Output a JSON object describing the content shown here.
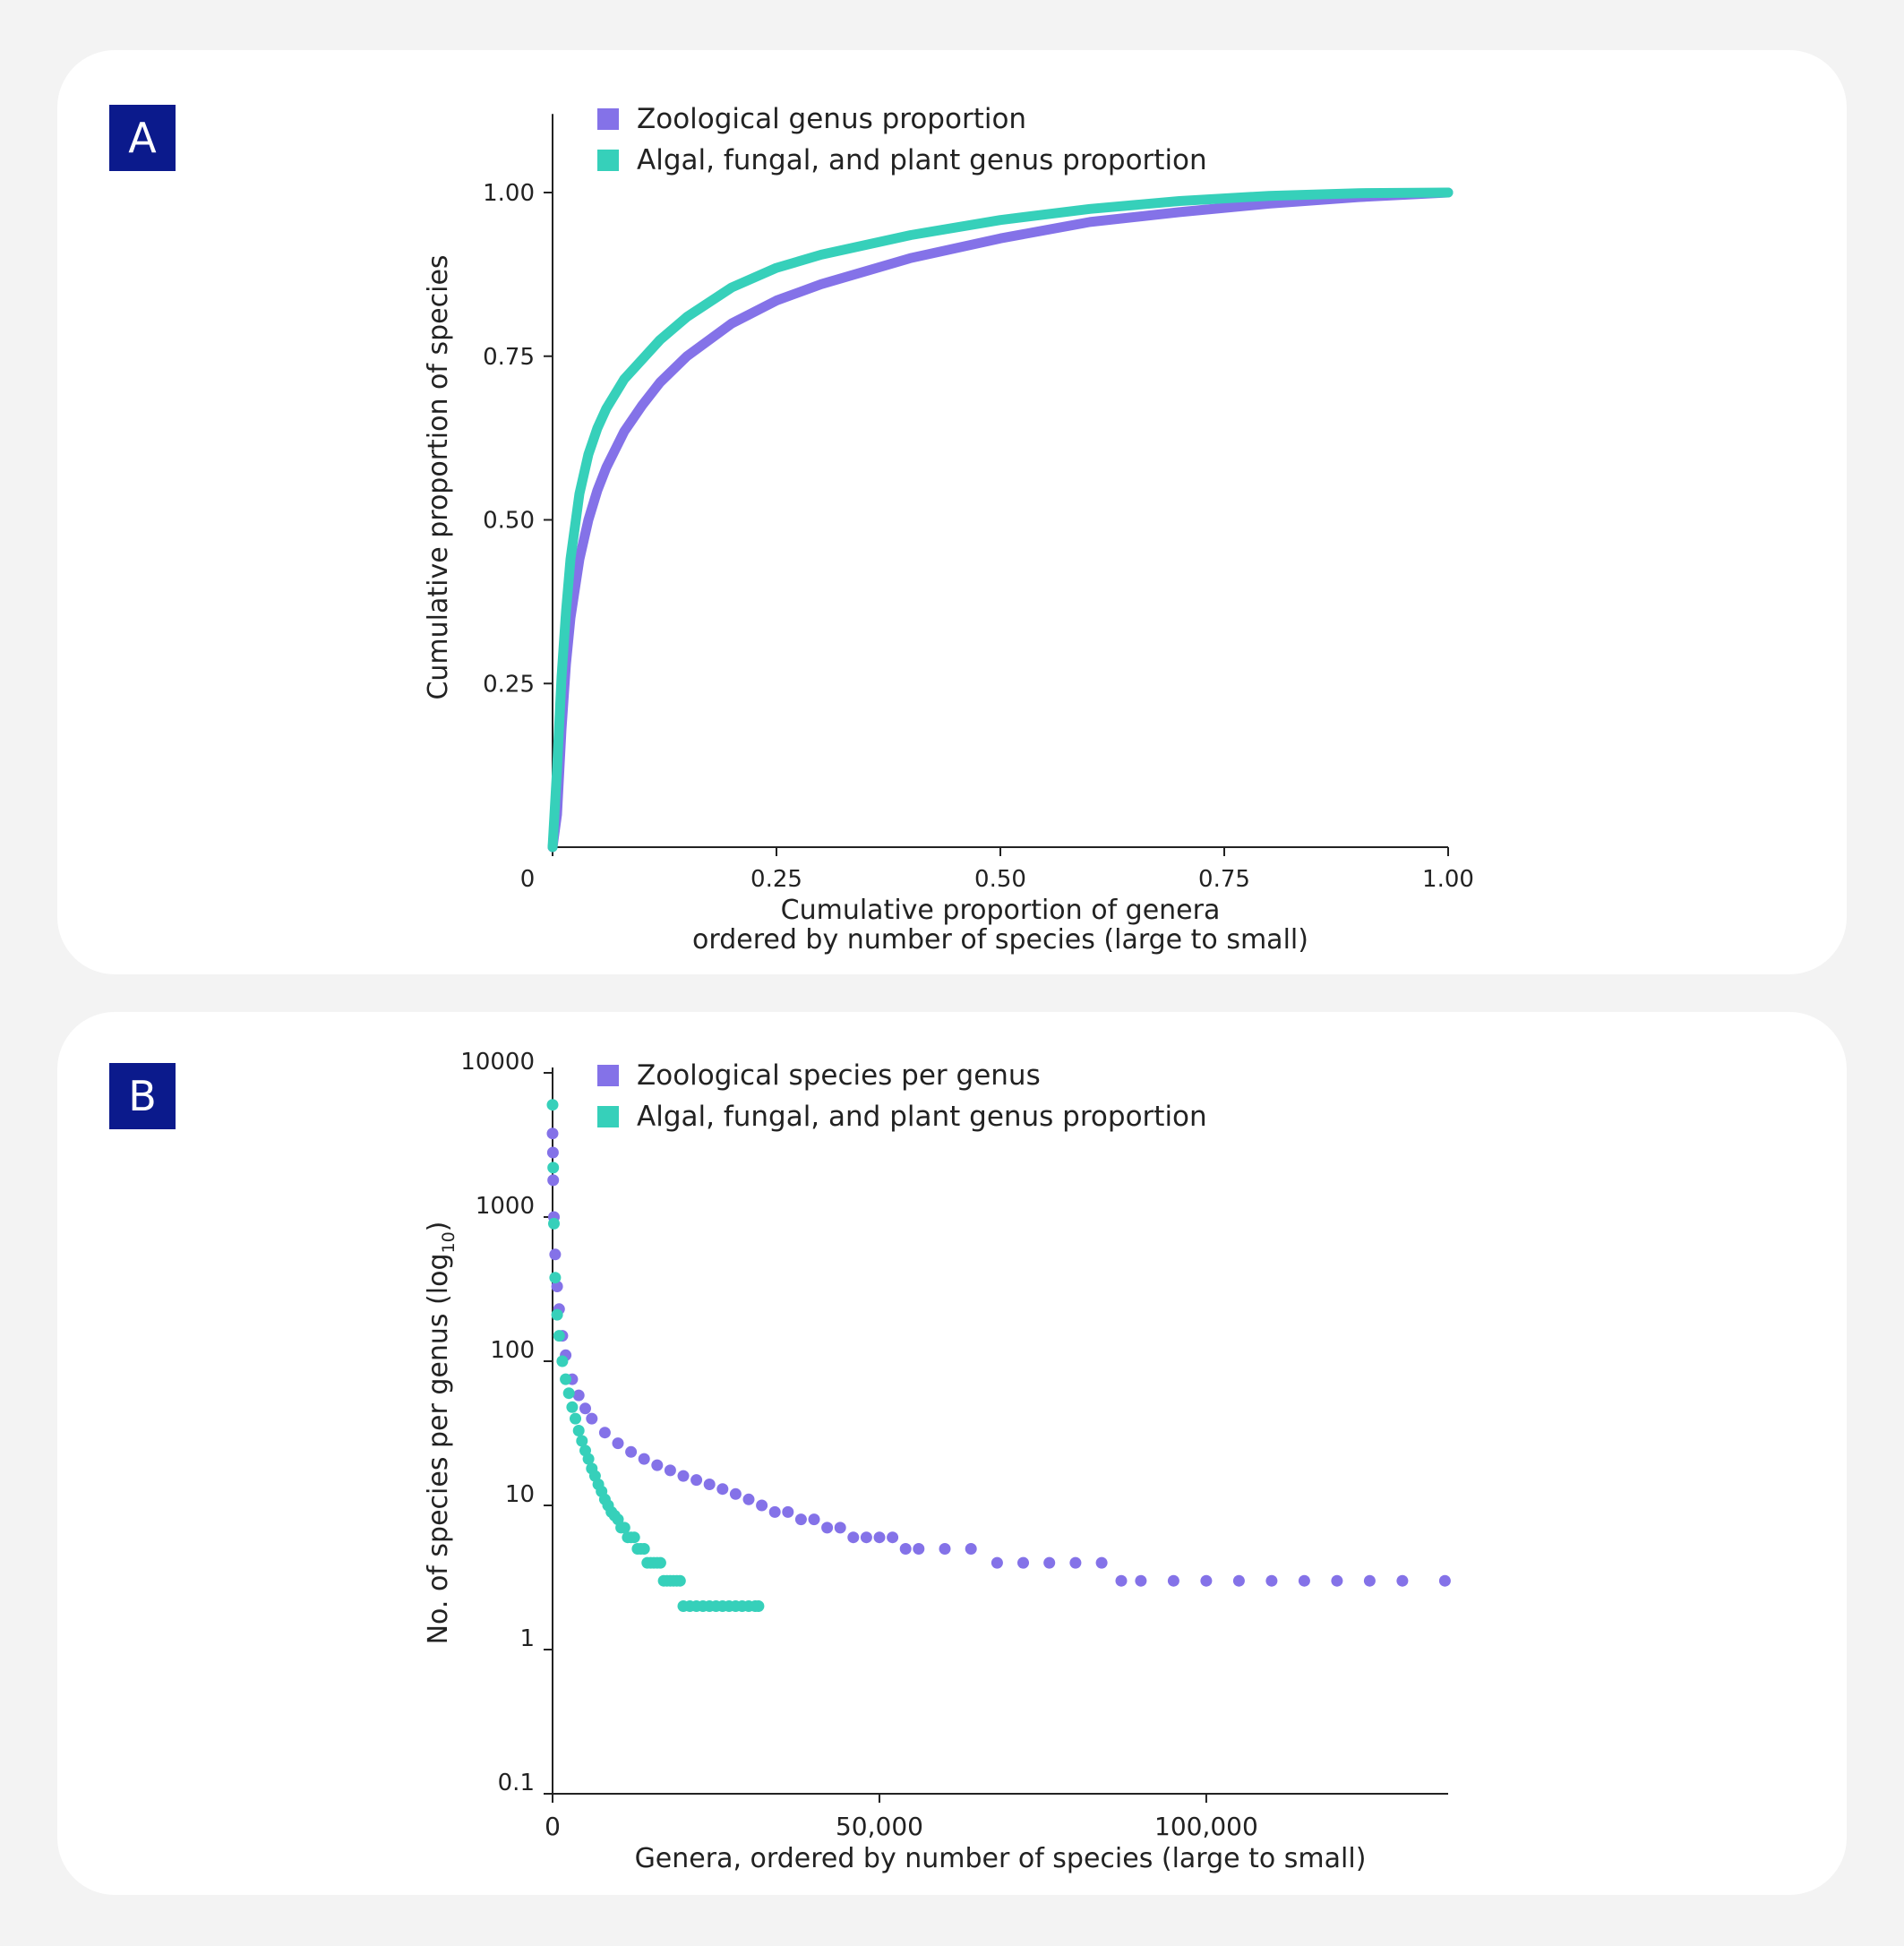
{
  "panels": {
    "a": {
      "label": "A"
    },
    "b": {
      "label": "B"
    }
  },
  "colors": {
    "zoological": "#8472e8",
    "algal": "#36d0ba",
    "axis": "#222222",
    "badge": "#0b1a8c"
  },
  "chart_data": [
    {
      "type": "line",
      "panel": "A",
      "title": "",
      "xlabel": [
        "Cumulative proportion of genera",
        "ordered by number of species (large to small)"
      ],
      "ylabel": "Cumulative proportion of species",
      "xlim": [
        0,
        1
      ],
      "ylim": [
        0,
        1.12
      ],
      "xticks": [
        0,
        0.25,
        0.5,
        0.75,
        1.0
      ],
      "xtick_labels": [
        "0",
        "0.25",
        "0.50",
        "0.75",
        "1.00"
      ],
      "yticks": [
        0.25,
        0.5,
        0.75,
        1.0
      ],
      "ytick_labels": [
        "0.25",
        "0.50",
        "0.75",
        "1.00"
      ],
      "legend_position": "top-left",
      "series": [
        {
          "name": "Zoological genus proportion",
          "color": "#8472e8",
          "x": [
            0,
            0.005,
            0.01,
            0.015,
            0.02,
            0.03,
            0.04,
            0.05,
            0.06,
            0.08,
            0.1,
            0.12,
            0.15,
            0.2,
            0.25,
            0.3,
            0.4,
            0.5,
            0.6,
            0.7,
            0.8,
            0.9,
            1.0
          ],
          "y": [
            0,
            0.05,
            0.18,
            0.28,
            0.35,
            0.44,
            0.5,
            0.545,
            0.58,
            0.635,
            0.675,
            0.71,
            0.75,
            0.8,
            0.835,
            0.86,
            0.9,
            0.93,
            0.955,
            0.97,
            0.983,
            0.993,
            1.0
          ]
        },
        {
          "name": "Algal, fungal, and plant genus proportion",
          "color": "#36d0ba",
          "x": [
            0,
            0.005,
            0.01,
            0.015,
            0.02,
            0.03,
            0.04,
            0.05,
            0.06,
            0.08,
            0.1,
            0.12,
            0.15,
            0.2,
            0.25,
            0.3,
            0.4,
            0.5,
            0.6,
            0.7,
            0.8,
            0.9,
            1.0
          ],
          "y": [
            0,
            0.12,
            0.26,
            0.36,
            0.44,
            0.54,
            0.6,
            0.64,
            0.67,
            0.715,
            0.745,
            0.775,
            0.81,
            0.855,
            0.885,
            0.905,
            0.935,
            0.958,
            0.975,
            0.987,
            0.995,
            0.999,
            1.0
          ]
        }
      ]
    },
    {
      "type": "scatter",
      "panel": "B",
      "title": "",
      "xlabel": "Genera, ordered by number of species (large to small)",
      "ylabel": "No. of species per genus (log",
      "ylabel_sub": "10",
      "ylabel_end": ")",
      "yscale": "log",
      "xlim": [
        0,
        137000
      ],
      "ylim": [
        0.1,
        10000
      ],
      "xticks": [
        0,
        50000,
        100000
      ],
      "xtick_labels": [
        "0",
        "50,000",
        "100,000"
      ],
      "yticks": [
        10000,
        1000,
        100,
        10,
        1,
        0.1
      ],
      "ytick_labels": [
        "10000",
        "1000",
        "100",
        "10",
        "1",
        "0.1"
      ],
      "legend_position": "top-left",
      "series": [
        {
          "name": "Zoological species per genus",
          "color": "#8472e8",
          "x": [
            0,
            50,
            100,
            200,
            400,
            700,
            1000,
            1500,
            2000,
            3000,
            4000,
            5000,
            6000,
            8000,
            10000,
            12000,
            14000,
            16000,
            18000,
            20000,
            22000,
            24000,
            26000,
            28000,
            30000,
            32000,
            34000,
            36000,
            38000,
            40000,
            42000,
            44000,
            46000,
            48000,
            50000,
            52000,
            54000,
            56000,
            60000,
            64000,
            68000,
            72000,
            76000,
            80000,
            84000,
            87000,
            90000,
            95000,
            100000,
            105000,
            110000,
            115000,
            120000,
            125000,
            130000,
            136500
          ],
          "y": [
            3800,
            2800,
            1800,
            1000,
            550,
            330,
            230,
            150,
            110,
            75,
            58,
            47,
            40,
            32,
            27,
            23.5,
            21,
            19,
            17.5,
            16,
            15,
            14,
            13,
            12,
            11,
            10,
            9,
            9,
            8,
            8,
            7,
            7,
            6,
            6,
            6,
            6,
            5,
            5,
            5,
            5,
            4,
            4,
            4,
            4,
            4,
            3,
            3,
            3,
            3,
            3,
            3,
            3,
            3,
            3,
            3,
            3
          ]
        },
        {
          "name": "Algal, fungal, and plant genus proportion",
          "color": "#36d0ba",
          "x": [
            0,
            100,
            200,
            400,
            700,
            1000,
            1500,
            2000,
            2500,
            3000,
            3500,
            4000,
            4500,
            5000,
            5500,
            6000,
            6500,
            7000,
            7500,
            8000,
            8500,
            9000,
            9500,
            10000,
            10500,
            11000,
            11500,
            12000,
            12500,
            13000,
            13500,
            14000,
            14500,
            15000,
            15500,
            16000,
            16500,
            17000,
            17500,
            18000,
            18500,
            19000,
            19500,
            20000,
            21000,
            22000,
            23000,
            24000,
            25000,
            26000,
            27000,
            28000,
            29000,
            30000,
            31000,
            31500
          ],
          "y": [
            6000,
            2200,
            900,
            380,
            210,
            150,
            100,
            75,
            60,
            48,
            40,
            33,
            28,
            24,
            21,
            18,
            16,
            14,
            12.5,
            11,
            10,
            9,
            8.5,
            8,
            7,
            7,
            6,
            6,
            6,
            5,
            5,
            5,
            4,
            4,
            4,
            4,
            4,
            3,
            3,
            3,
            3,
            3,
            3,
            2,
            2,
            2,
            2,
            2,
            2,
            2,
            2,
            2,
            2,
            2,
            2,
            2
          ]
        }
      ]
    }
  ]
}
